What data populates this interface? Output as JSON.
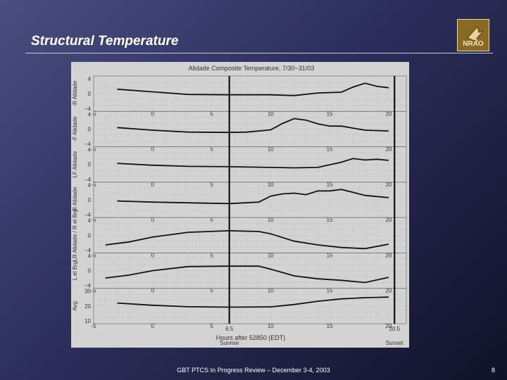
{
  "slide": {
    "title": "Structural Temperature",
    "footer": "GBT PTCS In Progress Review – December 3-4, 2003",
    "page_number": "8",
    "logo_text": "NRAO"
  },
  "chart_data": {
    "type": "line",
    "title": "Alidade Composite Temperature, 7/30−31/03",
    "xlabel": "Hours after 52850 (EDT)",
    "xlim": [
      -5,
      21.5
    ],
    "x_ticks": [
      -5,
      0,
      5,
      10,
      15,
      20
    ],
    "annotated_x_ticks": [
      "6.5",
      "20.5"
    ],
    "vertical_markers": [
      6.5,
      20.5
    ],
    "marker_labels": [
      "Sunrise",
      "Sunset"
    ],
    "panels": [
      {
        "ylabel": "-R Alidade",
        "ylim": [
          -4,
          4
        ],
        "yticks": [
          -4,
          0,
          4
        ],
        "ytick_labels": [
          "−4",
          "0",
          "4"
        ],
        "x": [
          -3,
          0,
          3,
          6.5,
          10,
          12,
          14,
          16,
          17,
          18,
          19,
          20
        ],
        "y": [
          1.2,
          0.5,
          -0.2,
          -0.3,
          -0.3,
          -0.5,
          0.2,
          0.4,
          1.8,
          2.8,
          2.0,
          1.6
        ]
      },
      {
        "ylabel": "-F Alidade",
        "ylim": [
          -4,
          4
        ],
        "yticks": [
          -4,
          0,
          4
        ],
        "ytick_labels": [
          "−4",
          "0",
          "4"
        ],
        "x": [
          -3,
          0,
          3,
          6.5,
          8,
          10,
          11,
          12,
          13,
          14,
          15,
          16,
          18,
          20
        ],
        "y": [
          0.4,
          -0.3,
          -0.8,
          -0.9,
          -0.8,
          -0.2,
          1.5,
          2.8,
          2.4,
          1.4,
          0.8,
          0.8,
          -0.3,
          -0.5
        ]
      },
      {
        "ylabel": "LF Alidade",
        "ylim": [
          -4,
          4
        ],
        "yticks": [
          -4,
          0,
          4
        ],
        "ytick_labels": [
          "−4",
          "0",
          "4"
        ],
        "x": [
          -3,
          0,
          3,
          6.5,
          10,
          12,
          14,
          16,
          17,
          18,
          19,
          20
        ],
        "y": [
          0.3,
          -0.2,
          -0.5,
          -0.6,
          -0.8,
          -0.9,
          -0.8,
          0.6,
          1.6,
          1.2,
          1.4,
          1.1
        ]
      },
      {
        "ylabel": "-R Alidade",
        "ylim": [
          -4,
          4
        ],
        "yticks": [
          -4,
          0,
          4
        ],
        "ytick_labels": [
          "−4",
          "0",
          "4"
        ],
        "x": [
          -3,
          0,
          3,
          6.5,
          9,
          10,
          11,
          12,
          13,
          14,
          15,
          16,
          17,
          18,
          20
        ],
        "y": [
          -0.3,
          -0.6,
          -0.8,
          -1.0,
          -0.6,
          1.0,
          1.6,
          1.8,
          1.4,
          2.4,
          2.4,
          2.8,
          2.0,
          1.2,
          0.6
        ]
      },
      {
        "ylabel": "LR Alidade / R el Brg",
        "ylim": [
          -4,
          4
        ],
        "yticks": [
          -4,
          0,
          4
        ],
        "ytick_labels": [
          "−4",
          "0",
          "4"
        ],
        "x": [
          -4,
          -2,
          0,
          3,
          6.5,
          9,
          10,
          12,
          14,
          16,
          18,
          20
        ],
        "y": [
          -2.6,
          -1.8,
          -0.5,
          0.8,
          1.2,
          1.0,
          0.4,
          -1.6,
          -2.6,
          -3.3,
          -3.6,
          -2.4
        ]
      },
      {
        "ylabel": "L el Brg",
        "ylim": [
          -4,
          4
        ],
        "yticks": [
          -4,
          0,
          4
        ],
        "ytick_labels": [
          "−4",
          "0",
          "4"
        ],
        "x": [
          -4,
          -2,
          0,
          3,
          6.5,
          9,
          10,
          12,
          14,
          16,
          18,
          20
        ],
        "y": [
          -2.0,
          -1.2,
          0.0,
          1.1,
          1.2,
          1.2,
          0.4,
          -1.4,
          -2.2,
          -2.6,
          -3.2,
          -1.8
        ]
      },
      {
        "ylabel": "Avg",
        "ylim": [
          10,
          30
        ],
        "yticks": [
          10,
          20,
          30
        ],
        "ytick_labels": [
          "10",
          "20",
          "30"
        ],
        "x": [
          -3,
          0,
          3,
          6.5,
          10,
          12,
          14,
          16,
          17,
          18,
          19,
          20
        ],
        "y": [
          22,
          20.5,
          19.5,
          19.2,
          19.4,
          21,
          23.2,
          24.8,
          25.2,
          25.6,
          25.8,
          26
        ]
      }
    ]
  }
}
